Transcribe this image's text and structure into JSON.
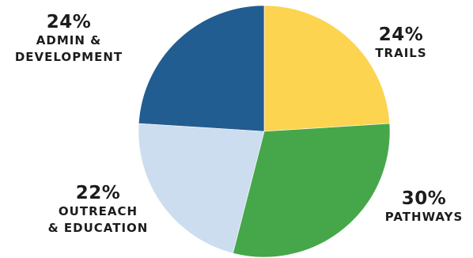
{
  "chart_data": {
    "type": "pie",
    "title": "",
    "start_angle_deg": 0,
    "direction": "clockwise",
    "slices": [
      {
        "pct_label": "24%",
        "value": 24,
        "label_lines": [
          "TRAILS"
        ],
        "color": "#FCD450"
      },
      {
        "pct_label": "30%",
        "value": 30,
        "label_lines": [
          "PATHWAYS"
        ],
        "color": "#46A74A"
      },
      {
        "pct_label": "22%",
        "value": 22,
        "label_lines": [
          "OUTREACH",
          "& EDUCATION"
        ],
        "color": "#CCDDEF"
      },
      {
        "pct_label": "24%",
        "value": 24,
        "label_lines": [
          "ADMIN &",
          "DEVELOPMENT"
        ],
        "color": "#225D92"
      }
    ]
  }
}
